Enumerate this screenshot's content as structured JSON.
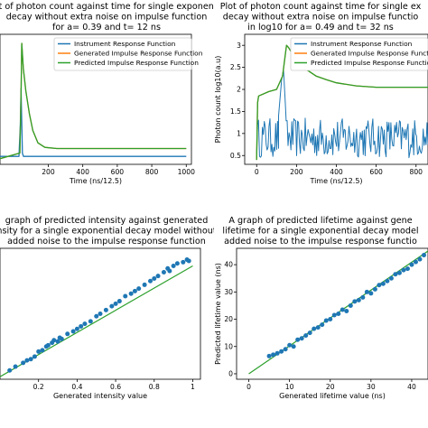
{
  "chart_data": [
    {
      "type": "line",
      "title": [
        "Plot of photon count  against time for single exponential",
        "decay without extra noise on impulse function",
        "for a= 0.39 and t= 12 ns"
      ],
      "xlabel": "Time (ns/12.5)",
      "ylabel": "",
      "xlim": [
        -80,
        1030
      ],
      "ylim": [
        -0.05,
        1.1
      ],
      "xticks": [
        200,
        400,
        600,
        800,
        1000
      ],
      "yticks": [],
      "legend": {
        "position": "top-right",
        "entries": [
          "Instrument Response Function",
          "Generated Impulse Response Function",
          "Predicted Impulse Response Function"
        ]
      },
      "series": [
        {
          "name": "Instrument Response Function",
          "color": "#1f77b4",
          "x": [
            -80,
            30,
            38,
            42,
            46,
            50,
            56,
            62,
            1000
          ],
          "y": [
            0.02,
            0.02,
            0.3,
            0.62,
            0.32,
            0.05,
            0.02,
            0.02,
            0.02
          ]
        },
        {
          "name": "Generated Impulse Response Function",
          "color": "#ff7f0e",
          "x": [
            -80,
            35,
            42,
            46,
            55,
            70,
            90,
            110,
            140,
            180,
            250,
            400,
            600,
            800,
            1000
          ],
          "y": [
            0.0,
            0.05,
            0.55,
            1.02,
            0.8,
            0.6,
            0.4,
            0.25,
            0.14,
            0.1,
            0.09,
            0.09,
            0.09,
            0.09,
            0.09
          ]
        },
        {
          "name": "Predicted Impulse Response Function",
          "color": "#2ca02c",
          "x": [
            -80,
            35,
            42,
            46,
            55,
            70,
            90,
            110,
            140,
            180,
            250,
            400,
            600,
            800,
            1000
          ],
          "y": [
            0.0,
            0.05,
            0.55,
            1.02,
            0.8,
            0.6,
            0.4,
            0.25,
            0.14,
            0.1,
            0.09,
            0.09,
            0.09,
            0.09,
            0.09
          ]
        }
      ]
    },
    {
      "type": "line",
      "title": [
        "Plot of photon count  against time for single ex",
        "decay without extra noise on impulse functio",
        "in log10 for a= 0.49 and t= 32 ns"
      ],
      "xlabel": "Time (ns/12.5)",
      "ylabel": "Photon count log10(a.u)",
      "xlim": [
        -60,
        860
      ],
      "ylim": [
        0.3,
        3.25
      ],
      "xticks": [
        0,
        200,
        400,
        600,
        800
      ],
      "yticks": [
        0.5,
        1.0,
        1.5,
        2.0,
        2.5,
        3.0
      ],
      "legend": {
        "position": "top-right",
        "entries": [
          "Instrument Response Function",
          "Generated Impulse Response Function",
          "Predicted Impulse Response Function"
        ]
      },
      "series": [
        {
          "name": "Instrument Response Function",
          "color": "#1f77b4",
          "noise": {
            "x0": 0,
            "x1": 860,
            "low": 0.45,
            "high": 1.35,
            "n": 180
          },
          "x": [
            110,
            125,
            135,
            145
          ],
          "y": [
            1.4,
            2.2,
            2.45,
            1.6
          ]
        },
        {
          "name": "Generated Impulse Response Function",
          "color": "#ff7f0e",
          "x": [
            0,
            5,
            10,
            60,
            100,
            130,
            150,
            160,
            200,
            250,
            300,
            350,
            400,
            500,
            600,
            700,
            800,
            860
          ],
          "y": [
            0.4,
            1.7,
            1.85,
            1.95,
            2.0,
            2.3,
            3.0,
            2.95,
            2.65,
            2.45,
            2.3,
            2.22,
            2.15,
            2.08,
            2.05,
            2.05,
            2.05,
            2.05
          ]
        },
        {
          "name": "Predicted Impulse Response Function",
          "color": "#2ca02c",
          "x": [
            0,
            5,
            10,
            60,
            100,
            130,
            150,
            160,
            200,
            250,
            300,
            350,
            400,
            500,
            600,
            700,
            800,
            860
          ],
          "y": [
            0.4,
            1.7,
            1.85,
            1.95,
            2.0,
            2.3,
            3.0,
            2.95,
            2.65,
            2.45,
            2.3,
            2.22,
            2.15,
            2.08,
            2.05,
            2.05,
            2.05,
            2.05
          ]
        }
      ]
    },
    {
      "type": "scatter",
      "title": [
        "graph of predicted intensity against generated",
        "nsity for a single exponential decay model without",
        "added noise to the impulse response function"
      ],
      "xlabel": "Generated intensity value",
      "ylabel": "",
      "xlim": [
        0.0,
        1.04
      ],
      "ylim": [
        0.0,
        1.04
      ],
      "xticks": [
        0.2,
        0.4,
        0.6,
        0.8,
        1.0
      ],
      "yticks": [],
      "points_color": "#1f77b4",
      "fit_color": "#2ca02c",
      "fit_line": [
        [
          0.0,
          0.02
        ],
        [
          1.0,
          0.9
        ]
      ],
      "x": [
        0.05,
        0.08,
        0.12,
        0.14,
        0.16,
        0.18,
        0.2,
        0.22,
        0.24,
        0.25,
        0.27,
        0.28,
        0.3,
        0.31,
        0.32,
        0.35,
        0.38,
        0.4,
        0.42,
        0.44,
        0.47,
        0.5,
        0.52,
        0.55,
        0.58,
        0.6,
        0.62,
        0.65,
        0.68,
        0.7,
        0.72,
        0.75,
        0.78,
        0.8,
        0.82,
        0.85,
        0.87,
        0.88,
        0.9,
        0.92,
        0.95,
        0.97,
        0.98
      ],
      "y": [
        0.07,
        0.1,
        0.13,
        0.15,
        0.16,
        0.18,
        0.22,
        0.23,
        0.26,
        0.27,
        0.29,
        0.31,
        0.3,
        0.33,
        0.32,
        0.36,
        0.38,
        0.4,
        0.42,
        0.44,
        0.46,
        0.5,
        0.52,
        0.55,
        0.58,
        0.6,
        0.62,
        0.66,
        0.68,
        0.7,
        0.72,
        0.75,
        0.78,
        0.8,
        0.82,
        0.85,
        0.88,
        0.86,
        0.9,
        0.92,
        0.93,
        0.95,
        0.94
      ]
    },
    {
      "type": "scatter",
      "title": [
        "A graph of predicted lifetime against gene",
        "lifetime for a single exponential decay model",
        "added noise to the impulse response functio"
      ],
      "xlabel": "Generated lifetime value (ns)",
      "ylabel": "Predicted lifetime value (ns)",
      "xlim": [
        -3,
        44
      ],
      "ylim": [
        -2,
        46
      ],
      "xticks": [
        0,
        10,
        20,
        30,
        40
      ],
      "yticks": [
        0,
        10,
        20,
        30,
        40
      ],
      "points_color": "#1f77b4",
      "fit_color": "#2ca02c",
      "fit_line": [
        [
          0,
          0
        ],
        [
          44,
          45
        ]
      ],
      "x": [
        5,
        6,
        7,
        8,
        9,
        10,
        11,
        12,
        13,
        14,
        15,
        16,
        17,
        18,
        19,
        20,
        21,
        22,
        23,
        24,
        25,
        26,
        27,
        28,
        29,
        30,
        31,
        32,
        33,
        34,
        35,
        36,
        37,
        38,
        39,
        40,
        41,
        42,
        43
      ],
      "y": [
        6.5,
        7,
        7.5,
        8.2,
        9,
        10.5,
        10,
        12.5,
        13,
        14,
        15,
        16.5,
        17,
        18,
        19.5,
        20,
        21.5,
        22,
        23.5,
        23,
        25,
        26.5,
        27,
        28,
        30,
        29.5,
        31,
        32.5,
        33,
        34,
        35,
        36.5,
        37,
        38,
        38.5,
        40,
        41,
        42,
        43.5
      ]
    }
  ]
}
